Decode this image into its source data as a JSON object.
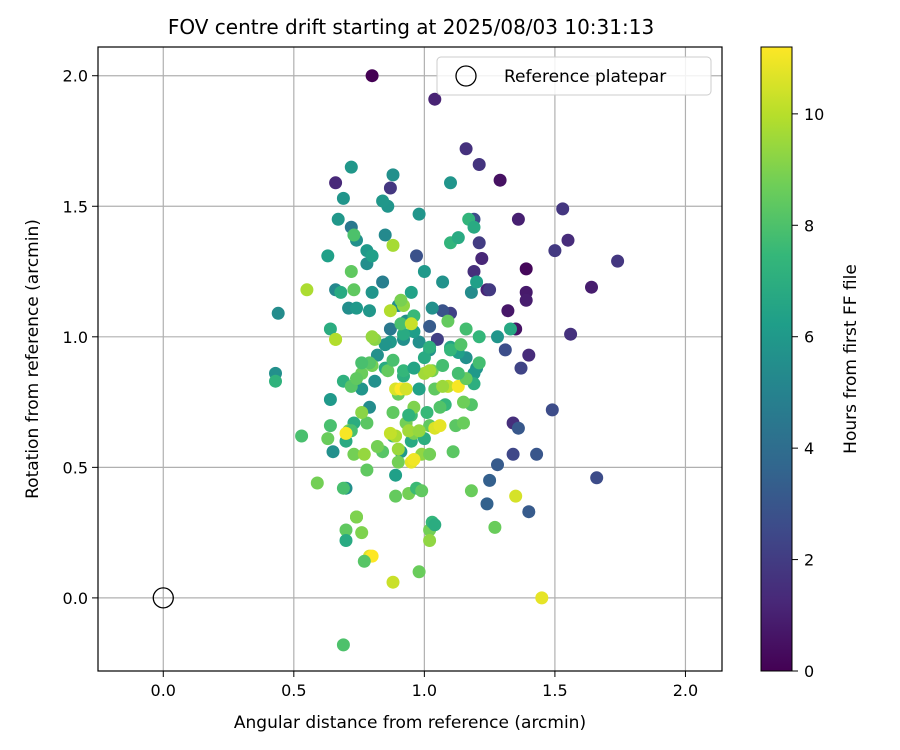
{
  "chart_data": {
    "type": "scatter",
    "title": "FOV centre drift starting at 2025/08/03 10:31:13",
    "xlabel": "Angular distance from reference (arcmin)",
    "ylabel": "Rotation from reference (arcmin)",
    "xlim": [
      -0.25,
      2.14
    ],
    "ylim": [
      -0.28,
      2.11
    ],
    "xticks": [
      "0.0",
      "0.5",
      "1.0",
      "1.5",
      "2.0"
    ],
    "yticks": [
      "0.0",
      "0.5",
      "1.0",
      "1.5",
      "2.0"
    ],
    "grid": true,
    "legend": {
      "placement": "top-right",
      "entries": [
        "Reference platepar"
      ]
    },
    "reference": {
      "x": 0.0,
      "y": 0.0
    },
    "colorbar": {
      "label": "Hours from first FF file",
      "range": [
        0,
        11.2
      ],
      "ticks": [
        "0",
        "2",
        "4",
        "6",
        "8",
        "10"
      ],
      "colormap": "viridis"
    },
    "points": [
      [
        0.8,
        2.0,
        0.0
      ],
      [
        1.04,
        1.91,
        1.1
      ],
      [
        1.16,
        1.72,
        1.6
      ],
      [
        1.21,
        1.66,
        1.7
      ],
      [
        1.29,
        1.6,
        0.5
      ],
      [
        1.53,
        1.49,
        1.8
      ],
      [
        1.55,
        1.37,
        1.4
      ],
      [
        1.74,
        1.29,
        1.8
      ],
      [
        1.64,
        1.19,
        0.9
      ],
      [
        1.56,
        1.01,
        1.6
      ],
      [
        1.5,
        1.33,
        1.9
      ],
      [
        1.39,
        1.26,
        0.2
      ],
      [
        1.39,
        1.17,
        0.8
      ],
      [
        1.39,
        1.14,
        0.9
      ],
      [
        1.36,
        1.45,
        1.0
      ],
      [
        1.32,
        1.1,
        0.7
      ],
      [
        1.35,
        1.03,
        0.6
      ],
      [
        1.22,
        1.3,
        1.2
      ],
      [
        1.21,
        1.36,
        2.0
      ],
      [
        1.19,
        1.25,
        1.5
      ],
      [
        1.24,
        1.18,
        1.1
      ],
      [
        1.25,
        1.18,
        1.9
      ],
      [
        1.4,
        0.93,
        1.4
      ],
      [
        1.37,
        0.88,
        2.3
      ],
      [
        1.31,
        0.95,
        2.7
      ],
      [
        1.34,
        0.67,
        1.5
      ],
      [
        1.34,
        0.55,
        2.4
      ],
      [
        1.36,
        0.65,
        3.1
      ],
      [
        1.49,
        0.72,
        2.6
      ],
      [
        1.43,
        0.55,
        3.0
      ],
      [
        1.4,
        0.33,
        3.2
      ],
      [
        1.28,
        0.51,
        3.2
      ],
      [
        1.25,
        0.45,
        3.4
      ],
      [
        1.24,
        0.36,
        3.5
      ],
      [
        1.66,
        0.46,
        2.6
      ],
      [
        0.66,
        1.59,
        1.3
      ],
      [
        0.87,
        1.57,
        1.8
      ],
      [
        0.97,
        1.31,
        2.8
      ],
      [
        1.1,
        1.09,
        2.2
      ],
      [
        1.07,
        1.1,
        2.9
      ],
      [
        1.05,
        0.99,
        2.1
      ],
      [
        1.19,
        1.45,
        2.6
      ],
      [
        1.02,
        1.04,
        3.2
      ],
      [
        0.86,
        1.5,
        5.8
      ],
      [
        0.84,
        1.52,
        5.9
      ],
      [
        0.88,
        1.62,
        5.6
      ],
      [
        0.98,
        1.47,
        5.8
      ],
      [
        1.1,
        1.59,
        5.8
      ],
      [
        0.69,
        1.53,
        5.8
      ],
      [
        0.72,
        1.65,
        5.9
      ],
      [
        0.67,
        1.45,
        5.9
      ],
      [
        0.72,
        1.42,
        4.5
      ],
      [
        0.74,
        1.37,
        5.6
      ],
      [
        0.78,
        1.33,
        6.0
      ],
      [
        0.78,
        1.28,
        5.5
      ],
      [
        0.8,
        1.31,
        6.3
      ],
      [
        0.84,
        1.21,
        4.8
      ],
      [
        0.85,
        1.39,
        5.3
      ],
      [
        0.63,
        1.31,
        6.3
      ],
      [
        0.66,
        1.18,
        5.2
      ],
      [
        0.68,
        1.17,
        6.8
      ],
      [
        0.71,
        1.11,
        5.5
      ],
      [
        0.74,
        1.11,
        6.0
      ],
      [
        0.79,
        1.1,
        5.9
      ],
      [
        0.8,
        1.17,
        5.8
      ],
      [
        0.87,
        1.03,
        4.5
      ],
      [
        0.9,
        1.12,
        5.5
      ],
      [
        0.93,
        1.06,
        5.6
      ],
      [
        0.95,
        1.17,
        6.4
      ],
      [
        1.0,
        1.25,
        6.0
      ],
      [
        1.07,
        1.21,
        5.7
      ],
      [
        1.03,
        1.11,
        5.6
      ],
      [
        1.1,
        1.36,
        7.3
      ],
      [
        1.13,
        1.38,
        6.8
      ],
      [
        1.17,
        1.45,
        7.3
      ],
      [
        1.19,
        1.42,
        6.8
      ],
      [
        1.18,
        1.17,
        5.4
      ],
      [
        1.2,
        1.21,
        6.3
      ],
      [
        1.28,
        1.0,
        5.8
      ],
      [
        1.21,
        1.0,
        7.4
      ],
      [
        1.33,
        1.03,
        6.7
      ],
      [
        1.2,
        0.88,
        5.8
      ],
      [
        1.16,
        0.92,
        5.6
      ],
      [
        1.19,
        0.86,
        6.0
      ],
      [
        1.19,
        0.82,
        7.0
      ],
      [
        1.13,
        0.94,
        6.3
      ],
      [
        1.1,
        0.96,
        6.5
      ],
      [
        1.02,
        0.95,
        5.7
      ],
      [
        0.98,
        0.98,
        5.6
      ],
      [
        0.96,
        1.02,
        6.2
      ],
      [
        0.92,
        0.99,
        5.6
      ],
      [
        0.87,
        0.98,
        6.0
      ],
      [
        0.92,
        1.01,
        6.8
      ],
      [
        0.96,
        1.08,
        7.5
      ],
      [
        0.91,
        1.05,
        7.9
      ],
      [
        0.85,
        0.97,
        5.8
      ],
      [
        0.82,
        0.93,
        5.6
      ],
      [
        0.76,
        0.8,
        5.8
      ],
      [
        0.81,
        0.83,
        5.6
      ],
      [
        0.79,
        0.73,
        5.4
      ],
      [
        0.64,
        0.76,
        6.0
      ],
      [
        0.65,
        0.56,
        5.6
      ],
      [
        0.7,
        0.42,
        5.6
      ],
      [
        0.7,
        0.6,
        6.8
      ],
      [
        0.44,
        1.09,
        5.4
      ],
      [
        0.43,
        0.86,
        5.6
      ],
      [
        0.43,
        0.83,
        7.2
      ],
      [
        0.64,
        1.03,
        6.9
      ],
      [
        0.69,
        0.83,
        7.1
      ],
      [
        0.72,
        0.81,
        8.2
      ],
      [
        0.73,
        0.67,
        6.9
      ],
      [
        0.76,
        0.86,
        8.6
      ],
      [
        0.8,
        0.89,
        8.8
      ],
      [
        0.85,
        0.88,
        6.8
      ],
      [
        0.91,
        0.8,
        7.7
      ],
      [
        0.92,
        0.85,
        7.0
      ],
      [
        0.95,
        0.7,
        7.7
      ],
      [
        0.98,
        0.8,
        6.4
      ],
      [
        1.0,
        0.92,
        6.8
      ],
      [
        1.02,
        0.96,
        7.1
      ],
      [
        1.03,
        0.87,
        8.8
      ],
      [
        1.07,
        0.89,
        7.8
      ],
      [
        1.08,
        0.74,
        7.4
      ],
      [
        1.1,
        0.95,
        7.4
      ],
      [
        1.14,
        0.97,
        8.1
      ],
      [
        1.16,
        1.03,
        7.8
      ],
      [
        1.09,
        1.06,
        8.5
      ],
      [
        1.04,
        0.8,
        8.4
      ],
      [
        1.01,
        0.71,
        7.5
      ],
      [
        0.95,
        0.6,
        6.8
      ],
      [
        0.91,
        0.56,
        6.0
      ],
      [
        0.89,
        0.47,
        6.3
      ],
      [
        0.88,
        0.62,
        7.7
      ],
      [
        0.84,
        0.56,
        8.2
      ],
      [
        0.82,
        0.58,
        8.8
      ],
      [
        0.78,
        0.49,
        8.4
      ],
      [
        0.78,
        0.67,
        8.3
      ],
      [
        0.73,
        0.55,
        8.8
      ],
      [
        0.77,
        0.55,
        9.4
      ],
      [
        0.71,
        0.64,
        9.1
      ],
      [
        0.72,
        0.64,
        7.9
      ],
      [
        0.74,
        0.84,
        8.4
      ],
      [
        0.76,
        0.71,
        9.2
      ],
      [
        0.79,
        0.9,
        8.2
      ],
      [
        0.86,
        0.87,
        8.5
      ],
      [
        0.88,
        0.71,
        8.4
      ],
      [
        0.9,
        0.78,
        8.6
      ],
      [
        0.93,
        0.67,
        8.8
      ],
      [
        0.96,
        0.63,
        8.9
      ],
      [
        0.99,
        0.55,
        9.3
      ],
      [
        1.02,
        0.55,
        8.8
      ],
      [
        1.0,
        0.61,
        7.0
      ],
      [
        1.02,
        0.66,
        8.4
      ],
      [
        1.04,
        0.65,
        10.6
      ],
      [
        1.06,
        0.73,
        8.1
      ],
      [
        1.09,
        0.81,
        10.1
      ],
      [
        1.13,
        0.81,
        11.1
      ],
      [
        1.16,
        0.84,
        8.5
      ],
      [
        1.18,
        0.74,
        8.1
      ],
      [
        1.12,
        0.66,
        8.3
      ],
      [
        1.15,
        0.67,
        8.6
      ],
      [
        1.11,
        0.56,
        8.3
      ],
      [
        1.18,
        0.41,
        8.6
      ],
      [
        1.27,
        0.27,
        8.6
      ],
      [
        0.53,
        0.62,
        7.9
      ],
      [
        0.59,
        0.44,
        8.8
      ],
      [
        0.63,
        0.61,
        8.6
      ],
      [
        0.64,
        0.66,
        7.9
      ],
      [
        0.69,
        0.42,
        7.9
      ],
      [
        0.7,
        0.26,
        8.4
      ],
      [
        0.7,
        0.22,
        6.8
      ],
      [
        0.74,
        0.31,
        8.6
      ],
      [
        0.76,
        0.25,
        9.0
      ],
      [
        0.79,
        0.16,
        10.7
      ],
      [
        0.8,
        0.16,
        11.2
      ],
      [
        0.77,
        0.14,
        8.2
      ],
      [
        0.69,
        -0.18,
        8.0
      ],
      [
        0.88,
        0.06,
        10.3
      ],
      [
        0.98,
        0.1,
        8.6
      ],
      [
        1.02,
        0.26,
        8.8
      ],
      [
        1.03,
        0.29,
        7.4
      ],
      [
        1.04,
        0.28,
        6.9
      ],
      [
        1.02,
        0.22,
        9.3
      ],
      [
        0.89,
        0.39,
        8.5
      ],
      [
        0.94,
        0.4,
        8.8
      ],
      [
        0.97,
        0.42,
        7.6
      ],
      [
        0.99,
        0.41,
        8.4
      ],
      [
        0.9,
        0.52,
        8.8
      ],
      [
        0.95,
        0.52,
        10.8
      ],
      [
        0.96,
        0.53,
        11.0
      ],
      [
        0.89,
        0.62,
        9.8
      ],
      [
        0.87,
        0.63,
        10.2
      ],
      [
        0.9,
        0.57,
        9.5
      ],
      [
        0.94,
        0.64,
        9.6
      ],
      [
        0.96,
        0.73,
        9.0
      ],
      [
        0.98,
        0.64,
        9.4
      ],
      [
        1.0,
        0.86,
        9.6
      ],
      [
        1.02,
        0.87,
        9.7
      ],
      [
        1.06,
        0.66,
        10.8
      ],
      [
        1.07,
        0.81,
        9.5
      ],
      [
        0.89,
        0.8,
        10.6
      ],
      [
        0.91,
        0.8,
        11.2
      ],
      [
        0.93,
        0.8,
        10.5
      ],
      [
        0.81,
        0.99,
        9.2
      ],
      [
        0.8,
        1.0,
        9.4
      ],
      [
        0.88,
        1.35,
        9.7
      ],
      [
        0.92,
        1.12,
        9.3
      ],
      [
        0.95,
        1.05,
        10.3
      ],
      [
        0.91,
        1.14,
        8.9
      ],
      [
        0.87,
        1.1,
        9.9
      ],
      [
        0.66,
        0.99,
        10.4
      ],
      [
        0.66,
        0.99,
        9.9
      ],
      [
        0.55,
        1.18,
        9.8
      ],
      [
        0.72,
        1.25,
        8.4
      ],
      [
        0.73,
        1.39,
        8.0
      ],
      [
        0.73,
        1.18,
        8.4
      ],
      [
        0.76,
        0.9,
        7.9
      ],
      [
        0.88,
        0.91,
        7.9
      ],
      [
        0.92,
        0.87,
        7.4
      ],
      [
        0.94,
        0.7,
        7.2
      ],
      [
        0.96,
        0.88,
        6.5
      ],
      [
        0.7,
        0.63,
        11.1
      ],
      [
        0.74,
        0.31,
        9.0
      ],
      [
        1.35,
        0.39,
        10.5
      ],
      [
        1.45,
        0.0,
        10.8
      ],
      [
        1.13,
        0.86,
        7.8
      ],
      [
        1.15,
        0.75,
        8.7
      ],
      [
        1.21,
        0.9,
        7.8
      ]
    ]
  }
}
